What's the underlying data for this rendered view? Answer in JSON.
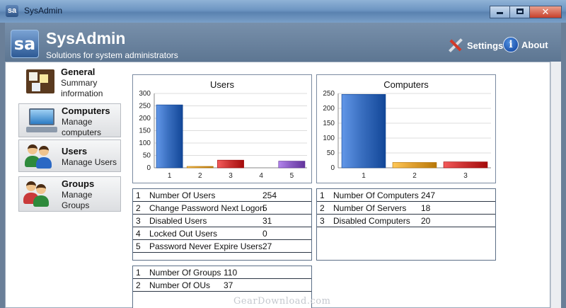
{
  "window": {
    "title": "SysAdmin",
    "app_icon_text": "sa",
    "close_glyph": "✕"
  },
  "header": {
    "logo_text": "sa",
    "title": "SysAdmin",
    "subtitle": "Solutions for system administrators",
    "settings_label": "Settings",
    "about_label": "About",
    "about_icon_text": "i"
  },
  "sidebar": {
    "items": [
      {
        "title": "General",
        "desc1": "Summary",
        "desc2": "information",
        "icon": "bulletin-board-icon"
      },
      {
        "title": "Computers",
        "desc1": "Manage",
        "desc2": "computers",
        "icon": "computer-icon"
      },
      {
        "title": "Users",
        "desc1": "Manage Users",
        "desc2": "",
        "icon": "users-icon"
      },
      {
        "title": "Groups",
        "desc1": "Manage",
        "desc2": "Groups",
        "icon": "groups-icon"
      }
    ]
  },
  "chart_data": [
    {
      "type": "bar",
      "title": "Users",
      "categories": [
        "1",
        "2",
        "3",
        "4",
        "5"
      ],
      "values": [
        254,
        5,
        31,
        0,
        27
      ],
      "ylim": [
        0,
        300
      ],
      "yticks": [
        0,
        50,
        100,
        150,
        200,
        250,
        300
      ],
      "colors": [
        "#3a6fc0",
        "#e0a030",
        "#cc3333",
        "#55aa55",
        "#8a5cc4"
      ],
      "grid": true
    },
    {
      "type": "bar",
      "title": "Computers",
      "categories": [
        "1",
        "2",
        "3"
      ],
      "values": [
        247,
        18,
        20
      ],
      "ylim": [
        0,
        250
      ],
      "yticks": [
        0,
        50,
        100,
        150,
        200,
        250
      ],
      "colors": [
        "#3a6fc0",
        "#e0a030",
        "#cc3333"
      ],
      "grid": true
    }
  ],
  "users_table": [
    {
      "id": "1",
      "name": "Number Of Users",
      "value": "254"
    },
    {
      "id": "2",
      "name": "Change Password Next Logon",
      "value": "5"
    },
    {
      "id": "3",
      "name": "Disabled Users",
      "value": "31"
    },
    {
      "id": "4",
      "name": "Locked Out Users",
      "value": "0"
    },
    {
      "id": "5",
      "name": "Password Never Expire Users",
      "value": "27"
    }
  ],
  "computers_table": [
    {
      "id": "1",
      "name": "Number Of Computers",
      "value": "247"
    },
    {
      "id": "2",
      "name": "Number Of Servers",
      "value": "18"
    },
    {
      "id": "3",
      "name": "Disabled Computers",
      "value": "20"
    }
  ],
  "groups_table": [
    {
      "id": "1",
      "name": "Number Of Groups",
      "value": "110"
    },
    {
      "id": "2",
      "name": "Number Of OUs",
      "value": "37"
    }
  ],
  "watermark": "GearDownload.com"
}
